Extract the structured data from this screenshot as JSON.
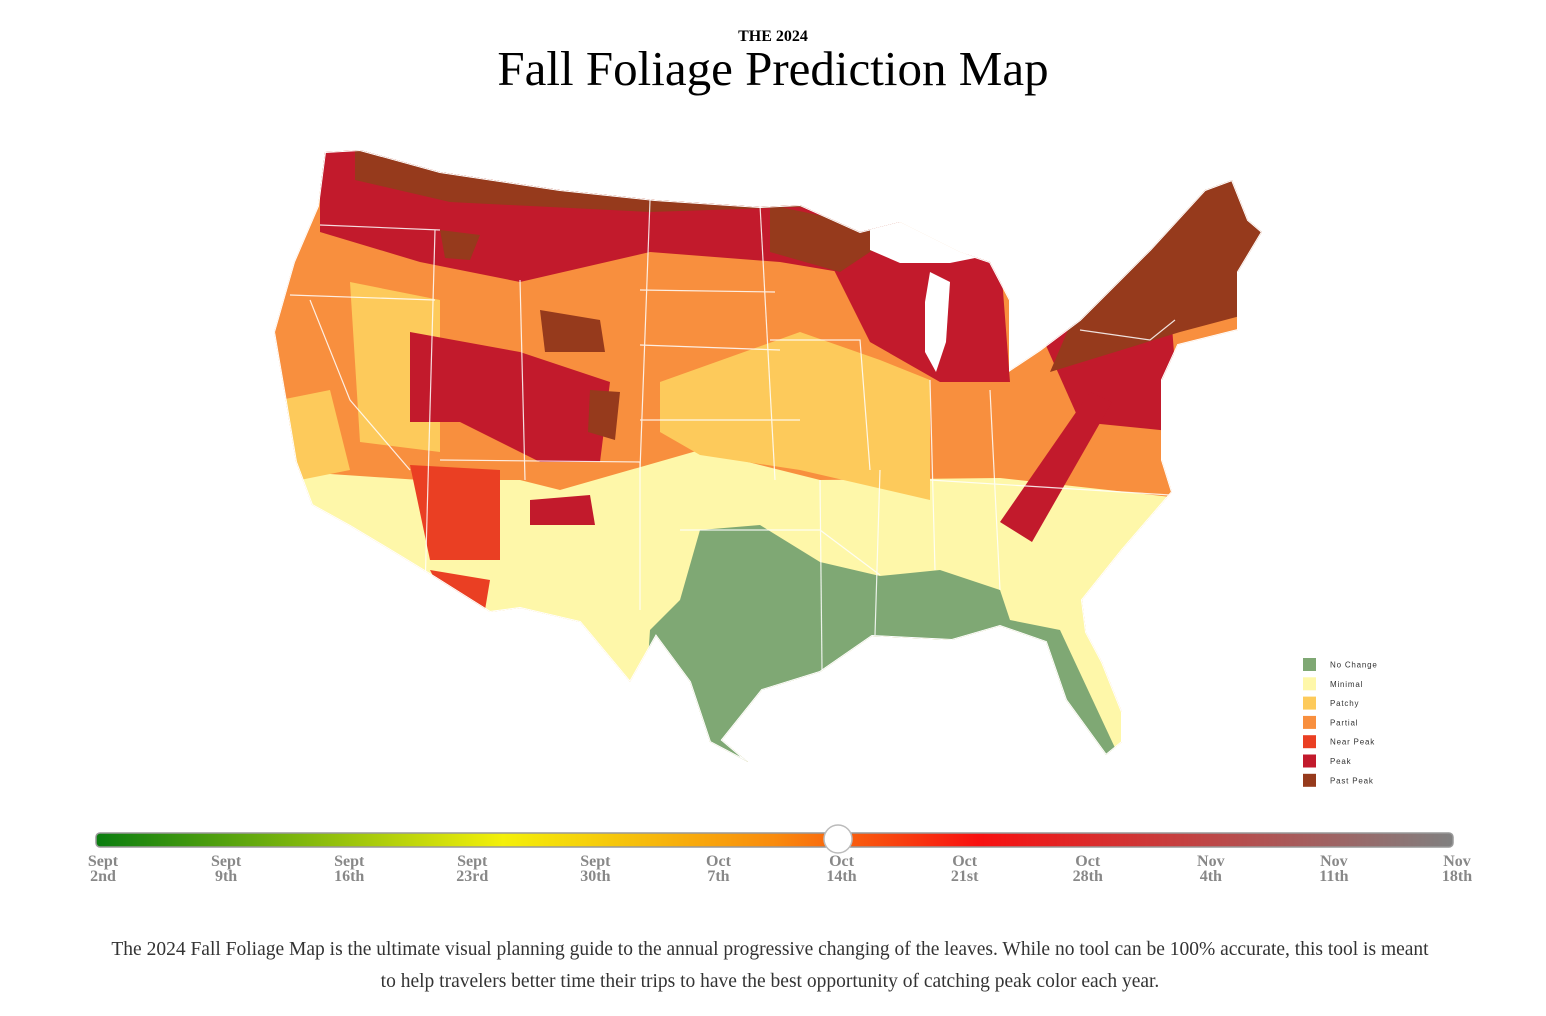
{
  "header": {
    "kicker": "THE 2024",
    "title": "Fall Foliage Prediction Map"
  },
  "legend": [
    {
      "label": "No Change",
      "color": "#7fa874"
    },
    {
      "label": "Minimal",
      "color": "#fef7a9"
    },
    {
      "label": "Patchy",
      "color": "#fdca5b"
    },
    {
      "label": "Partial",
      "color": "#f88f3e"
    },
    {
      "label": "Near Peak",
      "color": "#ea3f23"
    },
    {
      "label": "Peak",
      "color": "#c21a2c"
    },
    {
      "label": "Past Peak",
      "color": "#963a1c"
    }
  ],
  "slider": {
    "ticks": [
      {
        "month": "Sept",
        "day": "2nd"
      },
      {
        "month": "Sept",
        "day": "9th"
      },
      {
        "month": "Sept",
        "day": "16th"
      },
      {
        "month": "Sept",
        "day": "23rd"
      },
      {
        "month": "Sept",
        "day": "30th"
      },
      {
        "month": "Oct",
        "day": "7th"
      },
      {
        "month": "Oct",
        "day": "14th"
      },
      {
        "month": "Oct",
        "day": "21st"
      },
      {
        "month": "Oct",
        "day": "28th"
      },
      {
        "month": "Nov",
        "day": "4th"
      },
      {
        "month": "Nov",
        "day": "11th"
      },
      {
        "month": "Nov",
        "day": "18th"
      }
    ]
  },
  "description": "The 2024 Fall Foliage Map is the ultimate visual planning guide to the annual progressive changing of the leaves. While no tool can be 100% accurate, this tool is meant to help travelers better time their trips to have the best opportunity of catching peak color each year."
}
